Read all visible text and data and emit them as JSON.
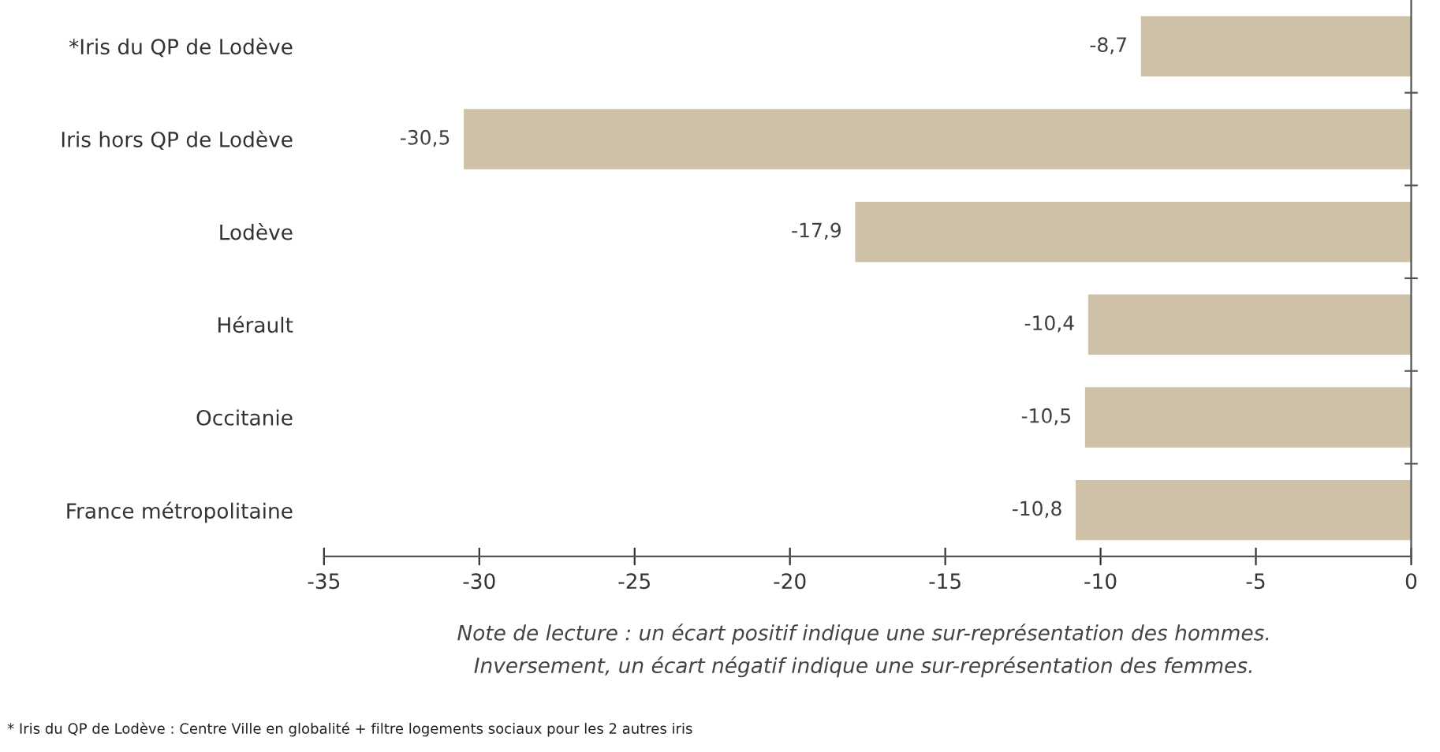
{
  "chart_data": {
    "type": "bar",
    "orientation": "horizontal",
    "categories": [
      "*Iris du QP de Lodève",
      "Iris hors QP de Lodève",
      "Lodève",
      "Hérault",
      "Occitanie",
      "France métropolitaine"
    ],
    "values": [
      -8.7,
      -30.5,
      -17.9,
      -10.4,
      -10.5,
      -10.8
    ],
    "value_labels": [
      "-8,7",
      "-30,5",
      "-17,9",
      "-10,4",
      "-10,5",
      "-10,8"
    ],
    "color": "#cfc1a8",
    "xlim": [
      -35,
      0
    ],
    "xticks": [
      -35,
      -30,
      -25,
      -20,
      -15,
      -10,
      -5,
      0
    ],
    "grid": false,
    "legend": false,
    "annotations": [
      "Note de lecture : un écart positif indique une sur-représentation des hommes.\nInversement, un écart négatif indique une sur-représentation des femmes.",
      "* Iris du QP de Lodève : Centre Ville en globalité + filtre logements sociaux pour les 2 autres iris"
    ]
  }
}
